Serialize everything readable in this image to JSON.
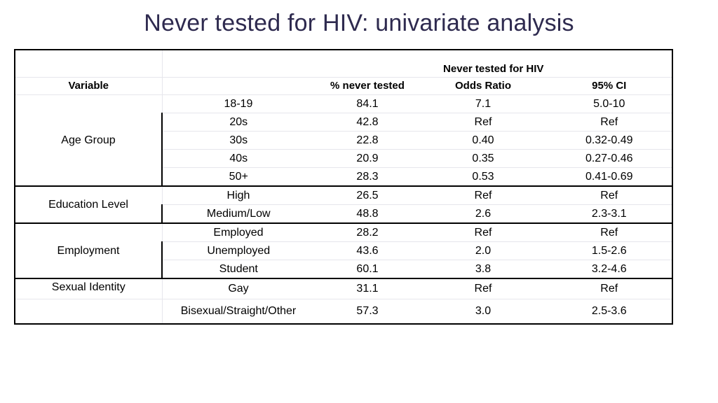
{
  "title": "Never tested for HIV: univariate analysis",
  "header": {
    "variable": "Variable",
    "group": "Never tested for HIV",
    "col_pct": "% never tested",
    "col_or": "Odds Ratio",
    "col_ci": "95% CI"
  },
  "groups": [
    {
      "label": "Age Group",
      "rows": [
        {
          "level": "18-19",
          "pct": "84.1",
          "or": "7.1",
          "ci": "5.0-10"
        },
        {
          "level": "20s",
          "pct": "42.8",
          "or": "Ref",
          "ci": "Ref"
        },
        {
          "level": "30s",
          "pct": "22.8",
          "or": "0.40",
          "ci": "0.32-0.49"
        },
        {
          "level": "40s",
          "pct": "20.9",
          "or": "0.35",
          "ci": "0.27-0.46"
        },
        {
          "level": "50+",
          "pct": "28.3",
          "or": "0.53",
          "ci": "0.41-0.69"
        }
      ]
    },
    {
      "label": "Education Level",
      "rows": [
        {
          "level": "High",
          "pct": "26.5",
          "or": "Ref",
          "ci": "Ref"
        },
        {
          "level": "Medium/Low",
          "pct": "48.8",
          "or": "2.6",
          "ci": "2.3-3.1"
        }
      ]
    },
    {
      "label": "Employment",
      "rows": [
        {
          "level": "Employed",
          "pct": "28.2",
          "or": "Ref",
          "ci": "Ref"
        },
        {
          "level": "Unemployed",
          "pct": "43.6",
          "or": "2.0",
          "ci": "1.5-2.6"
        },
        {
          "level": "Student",
          "pct": "60.1",
          "or": "3.8",
          "ci": "3.2-4.6"
        }
      ]
    },
    {
      "label": "Sexual Identity",
      "rows": [
        {
          "level": "Gay",
          "pct": "31.1",
          "or": "Ref",
          "ci": "Ref"
        },
        {
          "level": "Bisexual/Straight/Other",
          "pct": "57.3",
          "or": "3.0",
          "ci": "2.5-3.6"
        }
      ]
    }
  ]
}
